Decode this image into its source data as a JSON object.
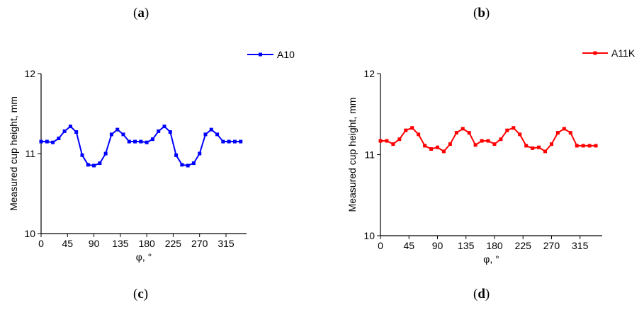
{
  "panels": [
    {
      "label_open": "(",
      "label_letter": "a",
      "label_close": ")"
    },
    {
      "label_open": "(",
      "label_letter": "b",
      "label_close": ")"
    },
    {
      "label_open": "(",
      "label_letter": "c",
      "label_close": ")"
    },
    {
      "label_open": "(",
      "label_letter": "d",
      "label_close": ")"
    }
  ],
  "chart_data": [
    {
      "type": "line",
      "xlabel": "φ, °",
      "ylabel": "Measured cup height, mm",
      "xlim": [
        0,
        350
      ],
      "ylim": [
        10,
        12
      ],
      "xticks": [
        "0",
        "45",
        "90",
        "135",
        "180",
        "225",
        "270",
        "315"
      ],
      "xtick_values": [
        0,
        45,
        90,
        135,
        180,
        225,
        270,
        315
      ],
      "yticks": [
        "10",
        "11",
        "12"
      ],
      "ytick_values": [
        10,
        11,
        12
      ],
      "legend_position": "top-right",
      "series": [
        {
          "name": "A10",
          "color": "#0000ff",
          "marker": "square",
          "x": [
            0,
            10,
            20,
            30,
            40,
            50,
            60,
            70,
            80,
            90,
            100,
            110,
            120,
            130,
            140,
            150,
            160,
            170,
            180,
            190,
            200,
            210,
            220,
            230,
            240,
            250,
            260,
            270,
            280,
            290,
            300,
            310,
            320,
            330,
            340
          ],
          "y": [
            11.15,
            11.15,
            11.14,
            11.19,
            11.28,
            11.34,
            11.27,
            10.98,
            10.86,
            10.85,
            10.88,
            11.0,
            11.24,
            11.3,
            11.24,
            11.15,
            11.15,
            11.15,
            11.14,
            11.18,
            11.28,
            11.34,
            11.27,
            10.98,
            10.86,
            10.85,
            10.88,
            11.0,
            11.24,
            11.3,
            11.24,
            11.15,
            11.15,
            11.15,
            11.15
          ]
        }
      ]
    },
    {
      "type": "line",
      "xlabel": "φ, °",
      "ylabel": "Measured cup height, mm",
      "xlim": [
        0,
        350
      ],
      "ylim": [
        10,
        12
      ],
      "xticks": [
        "0",
        "45",
        "90",
        "135",
        "180",
        "225",
        "270",
        "315"
      ],
      "xtick_values": [
        0,
        45,
        90,
        135,
        180,
        225,
        270,
        315
      ],
      "yticks": [
        "10",
        "11",
        "12"
      ],
      "ytick_values": [
        10,
        11,
        12
      ],
      "legend_position": "top-right",
      "series": [
        {
          "name": "A11K",
          "color": "#ff0000",
          "marker": "square",
          "x": [
            0,
            10,
            20,
            30,
            40,
            50,
            60,
            70,
            80,
            90,
            100,
            110,
            120,
            130,
            140,
            150,
            160,
            170,
            180,
            190,
            200,
            210,
            220,
            230,
            240,
            250,
            260,
            270,
            280,
            290,
            300,
            310,
            320,
            330,
            340
          ],
          "y": [
            11.17,
            11.17,
            11.13,
            11.19,
            11.3,
            11.33,
            11.25,
            11.11,
            11.07,
            11.09,
            11.04,
            11.13,
            11.27,
            11.32,
            11.27,
            11.12,
            11.17,
            11.17,
            11.13,
            11.19,
            11.3,
            11.33,
            11.25,
            11.11,
            11.08,
            11.09,
            11.04,
            11.13,
            11.27,
            11.32,
            11.27,
            11.11,
            11.11,
            11.11,
            11.11
          ]
        }
      ]
    }
  ]
}
